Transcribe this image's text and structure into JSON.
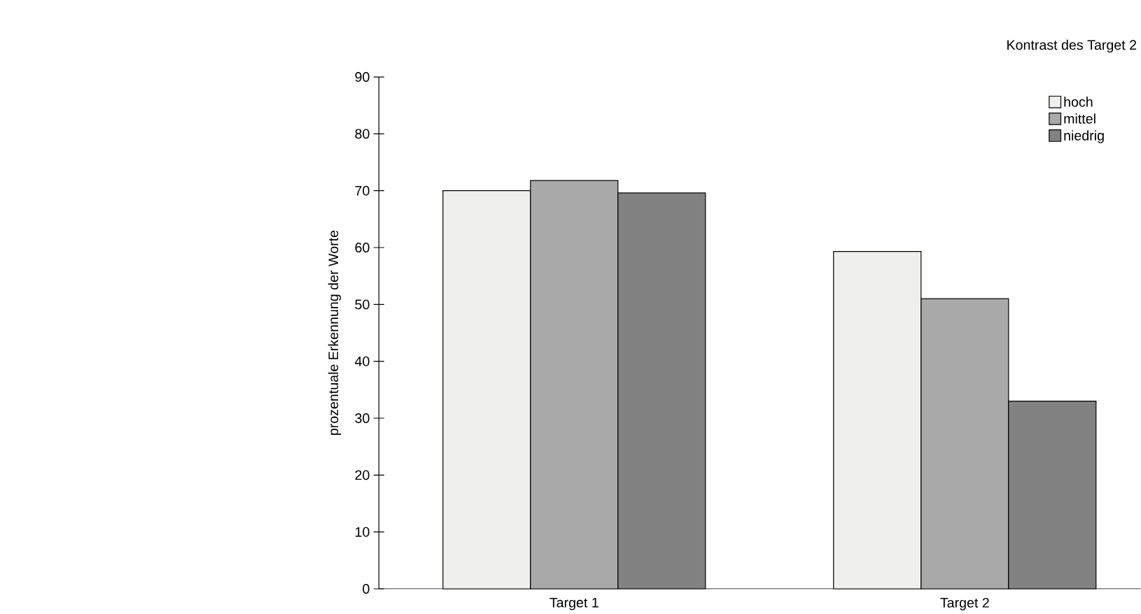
{
  "chart_data": {
    "type": "bar",
    "ylabel": "prozentuale Erkennung der Worte",
    "legend_title": "Kontrast des Target 2",
    "categories": [
      "Target 1",
      "Target 2"
    ],
    "series": [
      {
        "name": "hoch",
        "color": "#efefed",
        "values": [
          70,
          59.3
        ]
      },
      {
        "name": "mittel",
        "color": "#a9a9a9",
        "values": [
          71.8,
          51
        ]
      },
      {
        "name": "niedrig",
        "color": "#838283",
        "values": [
          69.6,
          33
        ]
      }
    ],
    "ylim": [
      0,
      90
    ],
    "yticks": [
      0,
      10,
      20,
      30,
      40,
      50,
      60,
      70,
      80,
      90
    ],
    "grid": false,
    "legend": "top right"
  }
}
